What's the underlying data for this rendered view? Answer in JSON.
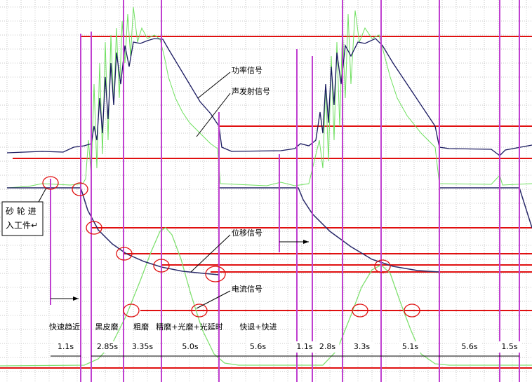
{
  "signals": {
    "power": "功率信号",
    "acoustic": "声发射信号",
    "displacement": "位移信号",
    "current": "电流信号"
  },
  "callout": {
    "line1": "砂 轮 进",
    "line2": "入工件↵"
  },
  "phases": [
    "快速趋近",
    "黑皮磨",
    "粗磨",
    "精磨+光磨+光延时",
    "快退+快进"
  ],
  "durations": [
    "1.1s",
    "2.85s",
    "3.35s",
    "5.0s",
    "5.6s",
    "1.1s",
    "2.8s",
    "3.3s",
    "5.1s",
    "5.6s",
    "1.5s"
  ]
}
